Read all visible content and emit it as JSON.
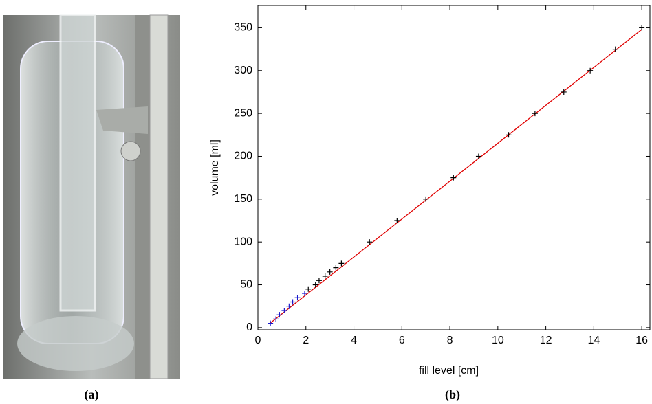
{
  "captions": [
    "(a)",
    "(b)"
  ],
  "chart_data": {
    "type": "scatter",
    "x_label": "fill level [cm]",
    "y_label": "volume [ml]",
    "xlim": [
      0,
      16.34
    ],
    "ylim": [
      -2.5,
      376
    ],
    "xticks": [
      0,
      2,
      4,
      6,
      8,
      10,
      12,
      14,
      16
    ],
    "yticks": [
      0,
      50,
      100,
      150,
      200,
      250,
      300,
      350
    ],
    "series": [
      {
        "color": "#1a1acc",
        "x": [
          0.52,
          0.75,
          0.9,
          1.1,
          1.3,
          1.45,
          1.65,
          1.95
        ],
        "values": [
          5,
          10,
          15,
          20,
          25,
          30,
          35,
          40
        ]
      },
      {
        "color": "#000000",
        "x": [
          2.1,
          2.4,
          2.55,
          2.8,
          3.0,
          3.25,
          3.48,
          4.65,
          5.8,
          7.0,
          8.15,
          9.2,
          10.45,
          11.55,
          12.75,
          13.85,
          14.9,
          16.0
        ],
        "values": [
          45,
          50,
          55,
          60,
          65,
          70,
          75,
          100,
          125,
          150,
          175,
          200,
          225,
          250,
          275,
          300,
          325,
          350
        ]
      },
      {
        "type": "line",
        "color": "#e00000",
        "x": [
          0.5,
          16.0
        ],
        "values": [
          5,
          348
        ]
      }
    ]
  }
}
